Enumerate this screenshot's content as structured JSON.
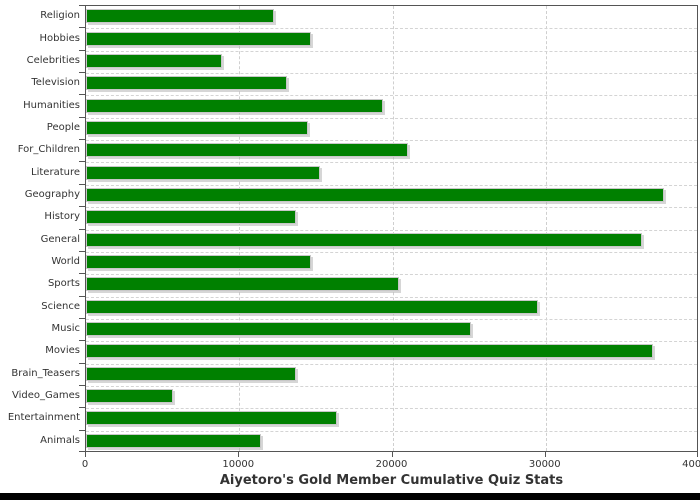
{
  "chart_data": {
    "type": "bar",
    "orientation": "horizontal",
    "title": "Aiyetoro's Gold Member Cumulative Quiz Stats",
    "categories": [
      "Religion",
      "Hobbies",
      "Celebrities",
      "Television",
      "Humanities",
      "People",
      "For_Children",
      "Literature",
      "Geography",
      "History",
      "General",
      "World",
      "Sports",
      "Science",
      "Music",
      "Movies",
      "Brain_Teasers",
      "Video_Games",
      "Entertainment",
      "Animals"
    ],
    "values": [
      12300,
      14700,
      8900,
      13100,
      19400,
      14500,
      21000,
      15300,
      37700,
      13700,
      36300,
      14700,
      20400,
      29500,
      25100,
      37000,
      13700,
      5700,
      16400,
      11400
    ],
    "xlabel": "",
    "ylabel": "",
    "xlim": [
      0,
      40000
    ],
    "x_ticks": [
      0,
      10000,
      20000,
      30000,
      40000
    ],
    "x_tick_labels": [
      "0",
      "10000",
      "20000",
      "30000",
      "40000"
    ],
    "grid": true,
    "legend": "none",
    "colors": {
      "bar": "#008000",
      "bar_outline": "#c8c8c8",
      "gridline": "#cfcfcf",
      "axis": "#555555",
      "text": "#333333",
      "bottom_strip": "#000000"
    }
  }
}
